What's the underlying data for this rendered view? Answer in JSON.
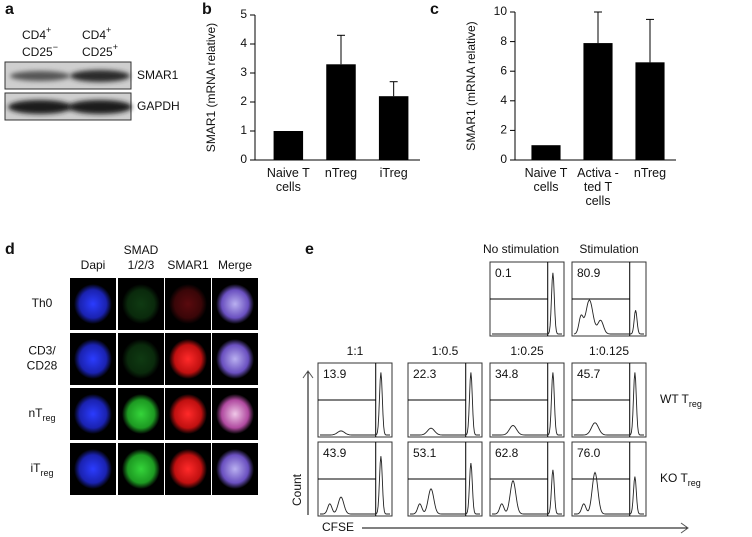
{
  "panels": [
    "a",
    "b",
    "c",
    "d",
    "e"
  ],
  "blot": {
    "columns": [
      {
        "line1": {
          "main": "CD4",
          "sup": "+"
        },
        "line2": {
          "main": "CD25",
          "sup": "−"
        }
      },
      {
        "line1": {
          "main": "CD4",
          "sup": "+"
        },
        "line2": {
          "main": "CD25",
          "sup": "+"
        }
      }
    ],
    "bands": [
      "SMAR1",
      "GAPDH"
    ]
  },
  "chart_data": [
    {
      "type": "bar",
      "ylabel": "SMAR1 (mRNA relative)",
      "categories": [
        "Naive T cells",
        "nTreg",
        "iTreg"
      ],
      "values": [
        1,
        3.3,
        2.2
      ],
      "errors": [
        null,
        1.0,
        0.5
      ],
      "color": "#000000",
      "ylim": [
        0,
        5
      ],
      "yticks": [
        0,
        1,
        2,
        3,
        4,
        5
      ]
    },
    {
      "type": "bar",
      "ylabel": "SMAR1 (mRNA relative)",
      "categories": [
        "Naive T cells",
        "Activa -ted T cells",
        "nTreg"
      ],
      "values": [
        1,
        7.9,
        6.6
      ],
      "errors": [
        null,
        2.1,
        2.9
      ],
      "color": "#000000",
      "ylim": [
        0,
        10
      ],
      "yticks": [
        0,
        2,
        4,
        6,
        8,
        10
      ]
    }
  ],
  "microscopy": {
    "columns": [
      [
        "Dapi"
      ],
      [
        "SMAD",
        "1/2/3"
      ],
      [
        "SMAR1"
      ],
      [
        "Merge"
      ]
    ],
    "rows": [
      [
        "Th0"
      ],
      [
        "CD3/",
        "CD28"
      ],
      [
        {
          "main": "nT",
          "sub": "reg"
        }
      ],
      [
        {
          "main": "iT",
          "sub": "reg"
        }
      ]
    ]
  },
  "flow": {
    "top": {
      "headers": [
        "No stimulation",
        "Stimulation"
      ],
      "values": [
        "0.1",
        "80.9"
      ]
    },
    "columns": [
      "1:1",
      "1:0.5",
      "1:0.25",
      "1:0.125"
    ],
    "rows": [
      {
        "label": {
          "main": "WT T",
          "sub": "reg"
        },
        "values": [
          "13.9",
          "22.3",
          "34.8",
          "45.7"
        ]
      },
      {
        "label": {
          "main": "KO T",
          "sub": "reg"
        },
        "values": [
          "43.9",
          "53.1",
          "62.8",
          "76.0"
        ]
      }
    ],
    "y_axis": "Count",
    "x_axis": "CFSE"
  }
}
